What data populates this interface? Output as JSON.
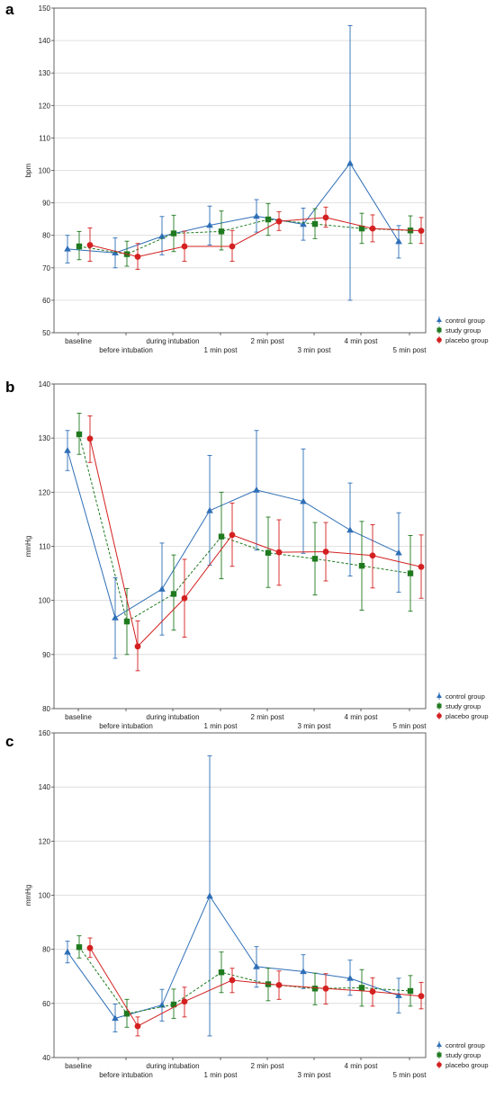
{
  "colors": {
    "control": "#2e6fb7",
    "study": "#1f7a1f",
    "placebo": "#d42020",
    "grid": "#d8d8d8"
  },
  "chart_data": [
    {
      "type": "line",
      "panel_label": "a",
      "ylabel": "bpm",
      "ylim": [
        50,
        150
      ],
      "yticks": [
        50,
        60,
        70,
        80,
        90,
        100,
        110,
        120,
        130,
        140,
        150
      ],
      "categories": [
        "baseline",
        "before intubation",
        "during intubation",
        "1 min post",
        "2 min post",
        "3 min post",
        "4 min post",
        "5 min post"
      ],
      "series": [
        {
          "name": "control group",
          "marker": "triangle",
          "values": [
            75.8,
            74.6,
            79.7,
            83.1,
            85.9,
            83.4,
            102.2,
            78.1
          ],
          "err_lo": [
            71.5,
            70.0,
            74.0,
            77.0,
            81.0,
            78.5,
            60.0,
            73.0
          ],
          "err_hi": [
            80.0,
            79.2,
            85.8,
            89.0,
            91.0,
            88.4,
            144.6,
            83.0
          ]
        },
        {
          "name": "study group",
          "marker": "square",
          "values": [
            76.6,
            74.2,
            80.6,
            81.2,
            84.9,
            83.5,
            82.1,
            81.5
          ],
          "err_lo": [
            72.5,
            70.5,
            75.0,
            75.5,
            80.0,
            79.0,
            77.5,
            77.5
          ],
          "err_hi": [
            81.2,
            78.2,
            86.2,
            87.5,
            89.8,
            88.2,
            86.8,
            86.0
          ]
        },
        {
          "name": "placebo group",
          "marker": "circle",
          "values": [
            77.0,
            73.4,
            76.6,
            76.6,
            84.3,
            85.5,
            82.1,
            81.4
          ],
          "err_lo": [
            72.0,
            69.5,
            72.0,
            72.0,
            81.5,
            82.5,
            78.0,
            77.5
          ],
          "err_hi": [
            82.3,
            77.5,
            81.3,
            81.5,
            87.3,
            88.7,
            86.3,
            85.5
          ]
        }
      ]
    },
    {
      "type": "line",
      "panel_label": "b",
      "ylabel": "mmHg",
      "ylim": [
        80,
        140
      ],
      "yticks": [
        80,
        90,
        100,
        110,
        120,
        130,
        140
      ],
      "categories": [
        "baseline",
        "before intubation",
        "during intubation",
        "1 min post",
        "2 min post",
        "3 min post",
        "4 min post",
        "5 min post"
      ],
      "series": [
        {
          "name": "control group",
          "marker": "triangle",
          "values": [
            127.7,
            96.8,
            102.1,
            116.6,
            120.4,
            118.3,
            113.0,
            108.8
          ],
          "err_lo": [
            124.0,
            89.3,
            93.6,
            106.5,
            109.3,
            108.7,
            104.5,
            101.5
          ],
          "err_hi": [
            131.4,
            104.2,
            110.6,
            126.8,
            131.4,
            128.0,
            121.7,
            116.2
          ]
        },
        {
          "name": "study group",
          "marker": "square",
          "values": [
            130.7,
            96.1,
            101.2,
            111.8,
            108.8,
            107.7,
            106.4,
            105.0
          ],
          "err_lo": [
            127.0,
            90.0,
            94.5,
            104.0,
            102.4,
            101.0,
            98.2,
            98.0
          ],
          "err_hi": [
            134.6,
            102.2,
            108.4,
            120.0,
            115.4,
            114.4,
            114.6,
            112.0
          ]
        },
        {
          "name": "placebo group",
          "marker": "circle",
          "values": [
            129.9,
            91.5,
            100.4,
            112.1,
            108.9,
            109.0,
            108.3,
            106.2
          ],
          "err_lo": [
            125.5,
            87.0,
            93.2,
            106.3,
            102.8,
            103.6,
            102.3,
            100.4
          ],
          "err_hi": [
            134.1,
            96.2,
            107.6,
            118.0,
            114.9,
            114.4,
            114.0,
            112.1
          ]
        }
      ]
    },
    {
      "type": "line",
      "panel_label": "c",
      "ylabel": "mmHg",
      "ylim": [
        40,
        160
      ],
      "yticks": [
        40,
        60,
        80,
        100,
        120,
        140,
        160
      ],
      "categories": [
        "baseline",
        "before intubation",
        "during intubation",
        "1 min post",
        "2 min post",
        "3 min post",
        "4 min post",
        "5 min post"
      ],
      "series": [
        {
          "name": "control group",
          "marker": "triangle",
          "values": [
            79.0,
            54.5,
            59.4,
            99.7,
            73.6,
            71.8,
            69.3,
            62.9
          ],
          "err_lo": [
            75.0,
            49.5,
            53.5,
            48.0,
            66.0,
            65.5,
            63.0,
            56.5
          ],
          "err_hi": [
            83.0,
            59.8,
            65.2,
            151.5,
            81.0,
            78.0,
            76.0,
            69.3
          ]
        },
        {
          "name": "study group",
          "marker": "square",
          "values": [
            80.8,
            56.2,
            59.6,
            71.5,
            67.1,
            65.5,
            65.8,
            64.6
          ],
          "err_lo": [
            76.8,
            51.2,
            54.5,
            64.0,
            61.0,
            59.5,
            59.0,
            59.0
          ],
          "err_hi": [
            85.0,
            61.5,
            65.3,
            79.0,
            73.0,
            71.2,
            72.5,
            70.3
          ]
        },
        {
          "name": "placebo group",
          "marker": "circle",
          "values": [
            80.5,
            51.6,
            60.7,
            68.6,
            66.8,
            65.5,
            64.4,
            62.7
          ],
          "err_lo": [
            77.0,
            48.0,
            55.0,
            64.0,
            61.5,
            59.8,
            59.0,
            58.0
          ],
          "err_hi": [
            84.2,
            55.0,
            66.0,
            73.0,
            72.0,
            71.0,
            69.5,
            67.8
          ]
        }
      ]
    }
  ]
}
